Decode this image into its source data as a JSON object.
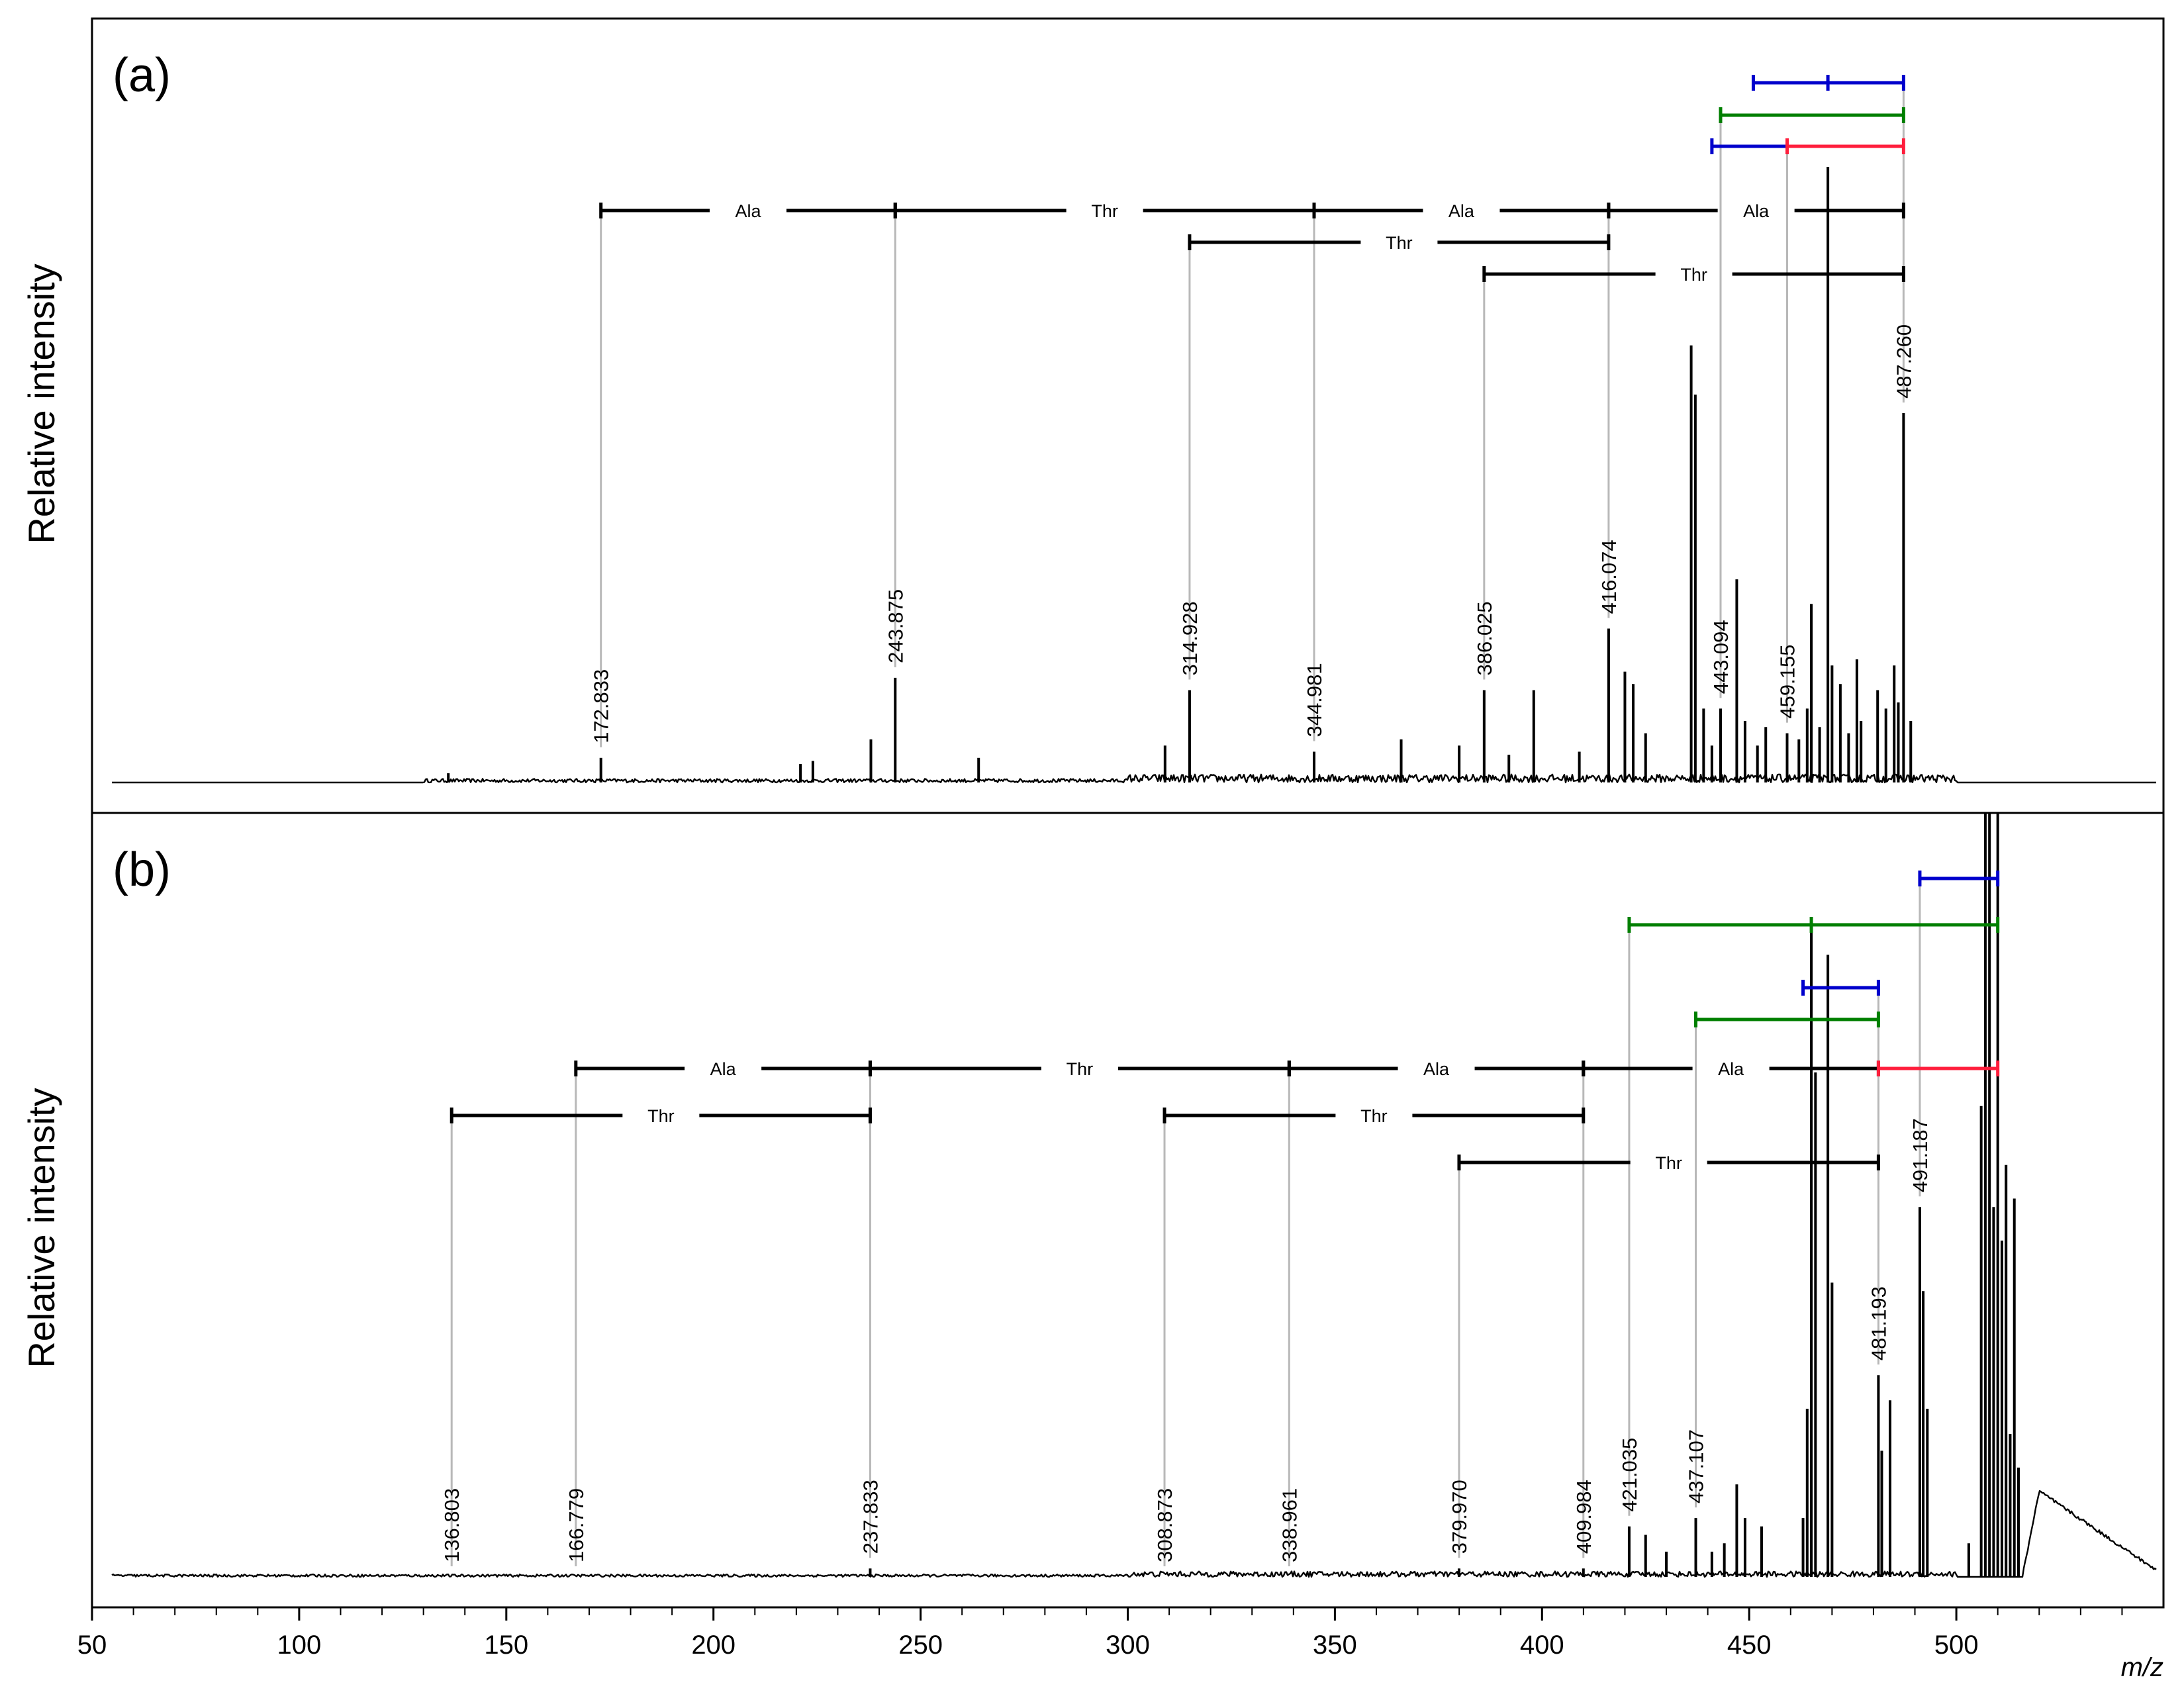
{
  "chart_data": {
    "type": "line",
    "xlabel": "m/z",
    "ylabel": "Relative intensity",
    "xlim": [
      50,
      550
    ],
    "xticks": [
      50,
      100,
      150,
      200,
      250,
      300,
      350,
      400,
      450,
      500
    ],
    "grid": false,
    "colors": {
      "black": "#000000",
      "blue": "#0000cc",
      "green": "#007f00",
      "red": "#ff1e3c",
      "guide": "#b8b8b8"
    },
    "panels": [
      {
        "panel_label": "(a)",
        "labeled_peaks": [
          {
            "mz": 172.833,
            "label": "172.833",
            "intensity": 0.04
          },
          {
            "mz": 243.875,
            "label": "243.875",
            "intensity": 0.17
          },
          {
            "mz": 314.928,
            "label": "314.928",
            "intensity": 0.15
          },
          {
            "mz": 344.981,
            "label": "344.981",
            "intensity": 0.05
          },
          {
            "mz": 386.025,
            "label": "386.025",
            "intensity": 0.15
          },
          {
            "mz": 416.074,
            "label": "416.074",
            "intensity": 0.25
          },
          {
            "mz": 443.094,
            "label": "443.094",
            "intensity": 0.12
          },
          {
            "mz": 459.155,
            "label": "459.155",
            "intensity": 0.08
          },
          {
            "mz": 487.26,
            "label": "487.260",
            "intensity": 0.6
          }
        ],
        "unlabeled_peaks": [
          {
            "mz": 136,
            "intensity": 0.015
          },
          {
            "mz": 221,
            "intensity": 0.03
          },
          {
            "mz": 224,
            "intensity": 0.035
          },
          {
            "mz": 238,
            "intensity": 0.07
          },
          {
            "mz": 264,
            "intensity": 0.04
          },
          {
            "mz": 309,
            "intensity": 0.06
          },
          {
            "mz": 366,
            "intensity": 0.07
          },
          {
            "mz": 380,
            "intensity": 0.06
          },
          {
            "mz": 392,
            "intensity": 0.045
          },
          {
            "mz": 398,
            "intensity": 0.15
          },
          {
            "mz": 409,
            "intensity": 0.05
          },
          {
            "mz": 420,
            "intensity": 0.18
          },
          {
            "mz": 422,
            "intensity": 0.16
          },
          {
            "mz": 425,
            "intensity": 0.08
          },
          {
            "mz": 436,
            "intensity": 0.71
          },
          {
            "mz": 437,
            "intensity": 0.63
          },
          {
            "mz": 439,
            "intensity": 0.12
          },
          {
            "mz": 441,
            "intensity": 0.06
          },
          {
            "mz": 447,
            "intensity": 0.33
          },
          {
            "mz": 449,
            "intensity": 0.1
          },
          {
            "mz": 452,
            "intensity": 0.06
          },
          {
            "mz": 454,
            "intensity": 0.09
          },
          {
            "mz": 462,
            "intensity": 0.07
          },
          {
            "mz": 464,
            "intensity": 0.12
          },
          {
            "mz": 465,
            "intensity": 0.29
          },
          {
            "mz": 467,
            "intensity": 0.09
          },
          {
            "mz": 469,
            "intensity": 1.0
          },
          {
            "mz": 470,
            "intensity": 0.19
          },
          {
            "mz": 472,
            "intensity": 0.16
          },
          {
            "mz": 474,
            "intensity": 0.08
          },
          {
            "mz": 476,
            "intensity": 0.2
          },
          {
            "mz": 477,
            "intensity": 0.1
          },
          {
            "mz": 481,
            "intensity": 0.15
          },
          {
            "mz": 483,
            "intensity": 0.12
          },
          {
            "mz": 485,
            "intensity": 0.19
          },
          {
            "mz": 486,
            "intensity": 0.13
          },
          {
            "mz": 489,
            "intensity": 0.1
          }
        ],
        "fragment_ladders": [
          {
            "label": "Ala",
            "from": 172.833,
            "to": 243.875,
            "color": "black",
            "row": 0
          },
          {
            "label": "Thr",
            "from": 243.875,
            "to": 344.981,
            "color": "black",
            "row": 0
          },
          {
            "label": "Ala",
            "from": 344.981,
            "to": 416.074,
            "color": "black",
            "row": 0
          },
          {
            "label": "Ala",
            "from": 416.074,
            "to": 487.26,
            "color": "black",
            "row": 0
          },
          {
            "label": "Thr",
            "from": 314.928,
            "to": 416.074,
            "color": "black",
            "row": 1
          },
          {
            "label": "Thr",
            "from": 386.025,
            "to": 487.26,
            "color": "black",
            "row": 2
          },
          {
            "label": "",
            "from": 441,
            "to": 459.155,
            "color": "blue",
            "row": -1
          },
          {
            "label": "",
            "from": 459.155,
            "to": 487.26,
            "color": "red",
            "row": -1
          },
          {
            "label": "",
            "from": 443.094,
            "to": 487.26,
            "color": "green",
            "row": -2
          },
          {
            "label": "",
            "from": 451,
            "to": 487.26,
            "color": "blue",
            "row": -3,
            "mid": 469
          }
        ]
      },
      {
        "panel_label": "(b)",
        "labeled_peaks": [
          {
            "mz": 136.803,
            "label": "136.803",
            "intensity": 0.0
          },
          {
            "mz": 166.779,
            "label": "166.779",
            "intensity": 0.0
          },
          {
            "mz": 237.833,
            "label": "237.833",
            "intensity": 0.01
          },
          {
            "mz": 308.873,
            "label": "308.873",
            "intensity": 0.0
          },
          {
            "mz": 338.961,
            "label": "338.961",
            "intensity": 0.0
          },
          {
            "mz": 379.97,
            "label": "379.970",
            "intensity": 0.01
          },
          {
            "mz": 409.984,
            "label": "409.984",
            "intensity": 0.01
          },
          {
            "mz": 421.035,
            "label": "421.035",
            "intensity": 0.06
          },
          {
            "mz": 437.107,
            "label": "437.107",
            "intensity": 0.07
          },
          {
            "mz": 481.193,
            "label": "481.193",
            "intensity": 0.24
          },
          {
            "mz": 491.187,
            "label": "491.187",
            "intensity": 0.44
          }
        ],
        "unlabeled_peaks": [
          {
            "mz": 425,
            "intensity": 0.05
          },
          {
            "mz": 430,
            "intensity": 0.03
          },
          {
            "mz": 441,
            "intensity": 0.03
          },
          {
            "mz": 444,
            "intensity": 0.04
          },
          {
            "mz": 447,
            "intensity": 0.11
          },
          {
            "mz": 449,
            "intensity": 0.07
          },
          {
            "mz": 453,
            "intensity": 0.06
          },
          {
            "mz": 463,
            "intensity": 0.07
          },
          {
            "mz": 464,
            "intensity": 0.2
          },
          {
            "mz": 465,
            "intensity": 0.77
          },
          {
            "mz": 466,
            "intensity": 0.6
          },
          {
            "mz": 469,
            "intensity": 0.74
          },
          {
            "mz": 470,
            "intensity": 0.35
          },
          {
            "mz": 482,
            "intensity": 0.15
          },
          {
            "mz": 484,
            "intensity": 0.21
          },
          {
            "mz": 492,
            "intensity": 0.34
          },
          {
            "mz": 493,
            "intensity": 0.2
          },
          {
            "mz": 503,
            "intensity": 0.04
          },
          {
            "mz": 506,
            "intensity": 0.56
          },
          {
            "mz": 507,
            "intensity": 1.0
          },
          {
            "mz": 508,
            "intensity": 1.0
          },
          {
            "mz": 509,
            "intensity": 0.44
          },
          {
            "mz": 510,
            "intensity": 1.0
          },
          {
            "mz": 511,
            "intensity": 0.4
          },
          {
            "mz": 512,
            "intensity": 0.49
          },
          {
            "mz": 513,
            "intensity": 0.17
          },
          {
            "mz": 514,
            "intensity": 0.45
          },
          {
            "mz": 515,
            "intensity": 0.13
          }
        ],
        "hump": {
          "start": 516,
          "peak": 520,
          "end": 550,
          "peak_intensity": 0.1
        },
        "fragment_ladders": [
          {
            "label": "Ala",
            "from": 166.779,
            "to": 237.833,
            "color": "black",
            "row": 0
          },
          {
            "label": "Thr",
            "from": 237.833,
            "to": 338.961,
            "color": "black",
            "row": 0
          },
          {
            "label": "Ala",
            "from": 338.961,
            "to": 409.984,
            "color": "black",
            "row": 0
          },
          {
            "label": "Ala",
            "from": 409.984,
            "to": 481.193,
            "color": "black",
            "row": 0
          },
          {
            "label": "",
            "from": 481.193,
            "to": 510,
            "color": "red",
            "row": 0
          },
          {
            "label": "Thr",
            "from": 136.803,
            "to": 237.833,
            "color": "black",
            "row": 1
          },
          {
            "label": "Thr",
            "from": 308.873,
            "to": 409.984,
            "color": "black",
            "row": 1
          },
          {
            "label": "Thr",
            "from": 379.97,
            "to": 481.193,
            "color": "black",
            "row": 2
          },
          {
            "label": "",
            "from": 437.107,
            "to": 481.193,
            "color": "green",
            "row": -1
          },
          {
            "label": "",
            "from": 463,
            "to": 481.193,
            "color": "blue",
            "row": -2
          },
          {
            "label": "",
            "from": 421.035,
            "to": 510,
            "color": "green",
            "row": -3,
            "mid": 465
          },
          {
            "label": "",
            "from": 491.187,
            "to": 510,
            "color": "blue",
            "row": -4
          }
        ]
      }
    ]
  }
}
